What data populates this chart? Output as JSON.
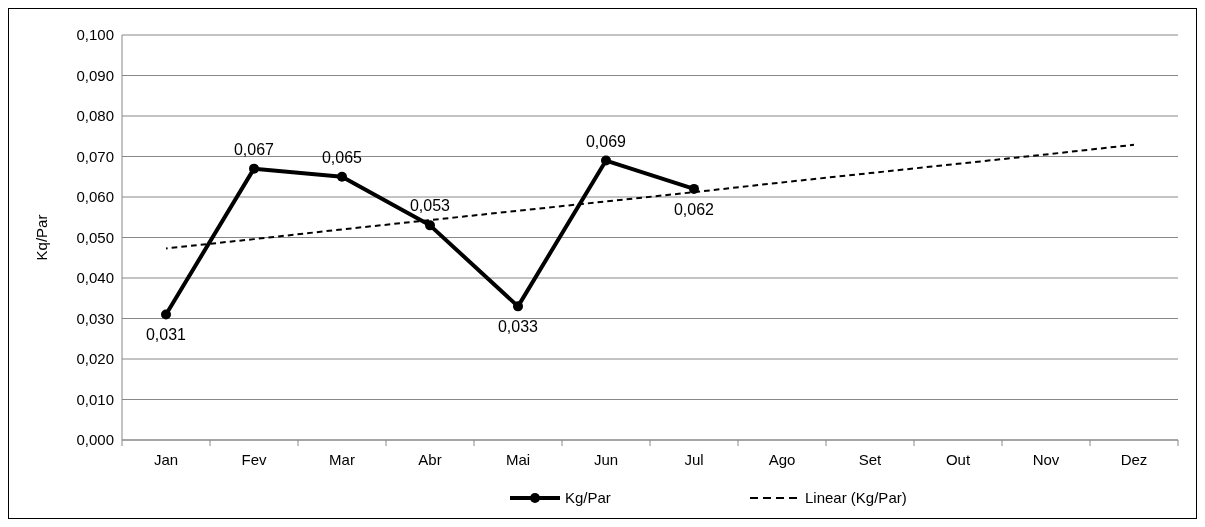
{
  "chart_data": {
    "type": "line",
    "ylabel": "Kq/Par",
    "categories": [
      "Jan",
      "Fev",
      "Mar",
      "Abr",
      "Mai",
      "Jun",
      "Jul",
      "Ago",
      "Set",
      "Out",
      "Nov",
      "Dez"
    ],
    "series": [
      {
        "name": "Kg/Par",
        "color": "#000000",
        "marker": "circle",
        "line_style": "solid",
        "values": [
          0.031,
          0.067,
          0.065,
          0.053,
          0.033,
          0.069,
          0.062,
          null,
          null,
          null,
          null,
          null
        ],
        "value_labels": [
          "0,031",
          "0,067",
          "0,065",
          "0,053",
          "0,033",
          "0,069",
          "0,062",
          null,
          null,
          null,
          null,
          null
        ]
      },
      {
        "name": "Linear (Kg/Par)",
        "color": "#000000",
        "marker": "none",
        "line_style": "dashed",
        "values": [
          0.0473,
          0.0496,
          0.052,
          0.0543,
          0.0566,
          0.0589,
          0.0612,
          0.0636,
          0.0659,
          0.0682,
          0.0705,
          0.0729
        ]
      }
    ],
    "ylim": [
      0,
      0.1
    ],
    "yticks": [
      {
        "value": 0,
        "label": "0,000"
      },
      {
        "value": 0.01,
        "label": "0,010"
      },
      {
        "value": 0.02,
        "label": "0,020"
      },
      {
        "value": 0.03,
        "label": "0,030"
      },
      {
        "value": 0.04,
        "label": "0,040"
      },
      {
        "value": 0.05,
        "label": "0,050"
      },
      {
        "value": 0.06,
        "label": "0,060"
      },
      {
        "value": 0.07,
        "label": "0,070"
      },
      {
        "value": 0.08,
        "label": "0,080"
      },
      {
        "value": 0.09,
        "label": "0,090"
      },
      {
        "value": 0.1,
        "label": "0,100"
      }
    ],
    "grid": "y",
    "legend": "bottom"
  }
}
